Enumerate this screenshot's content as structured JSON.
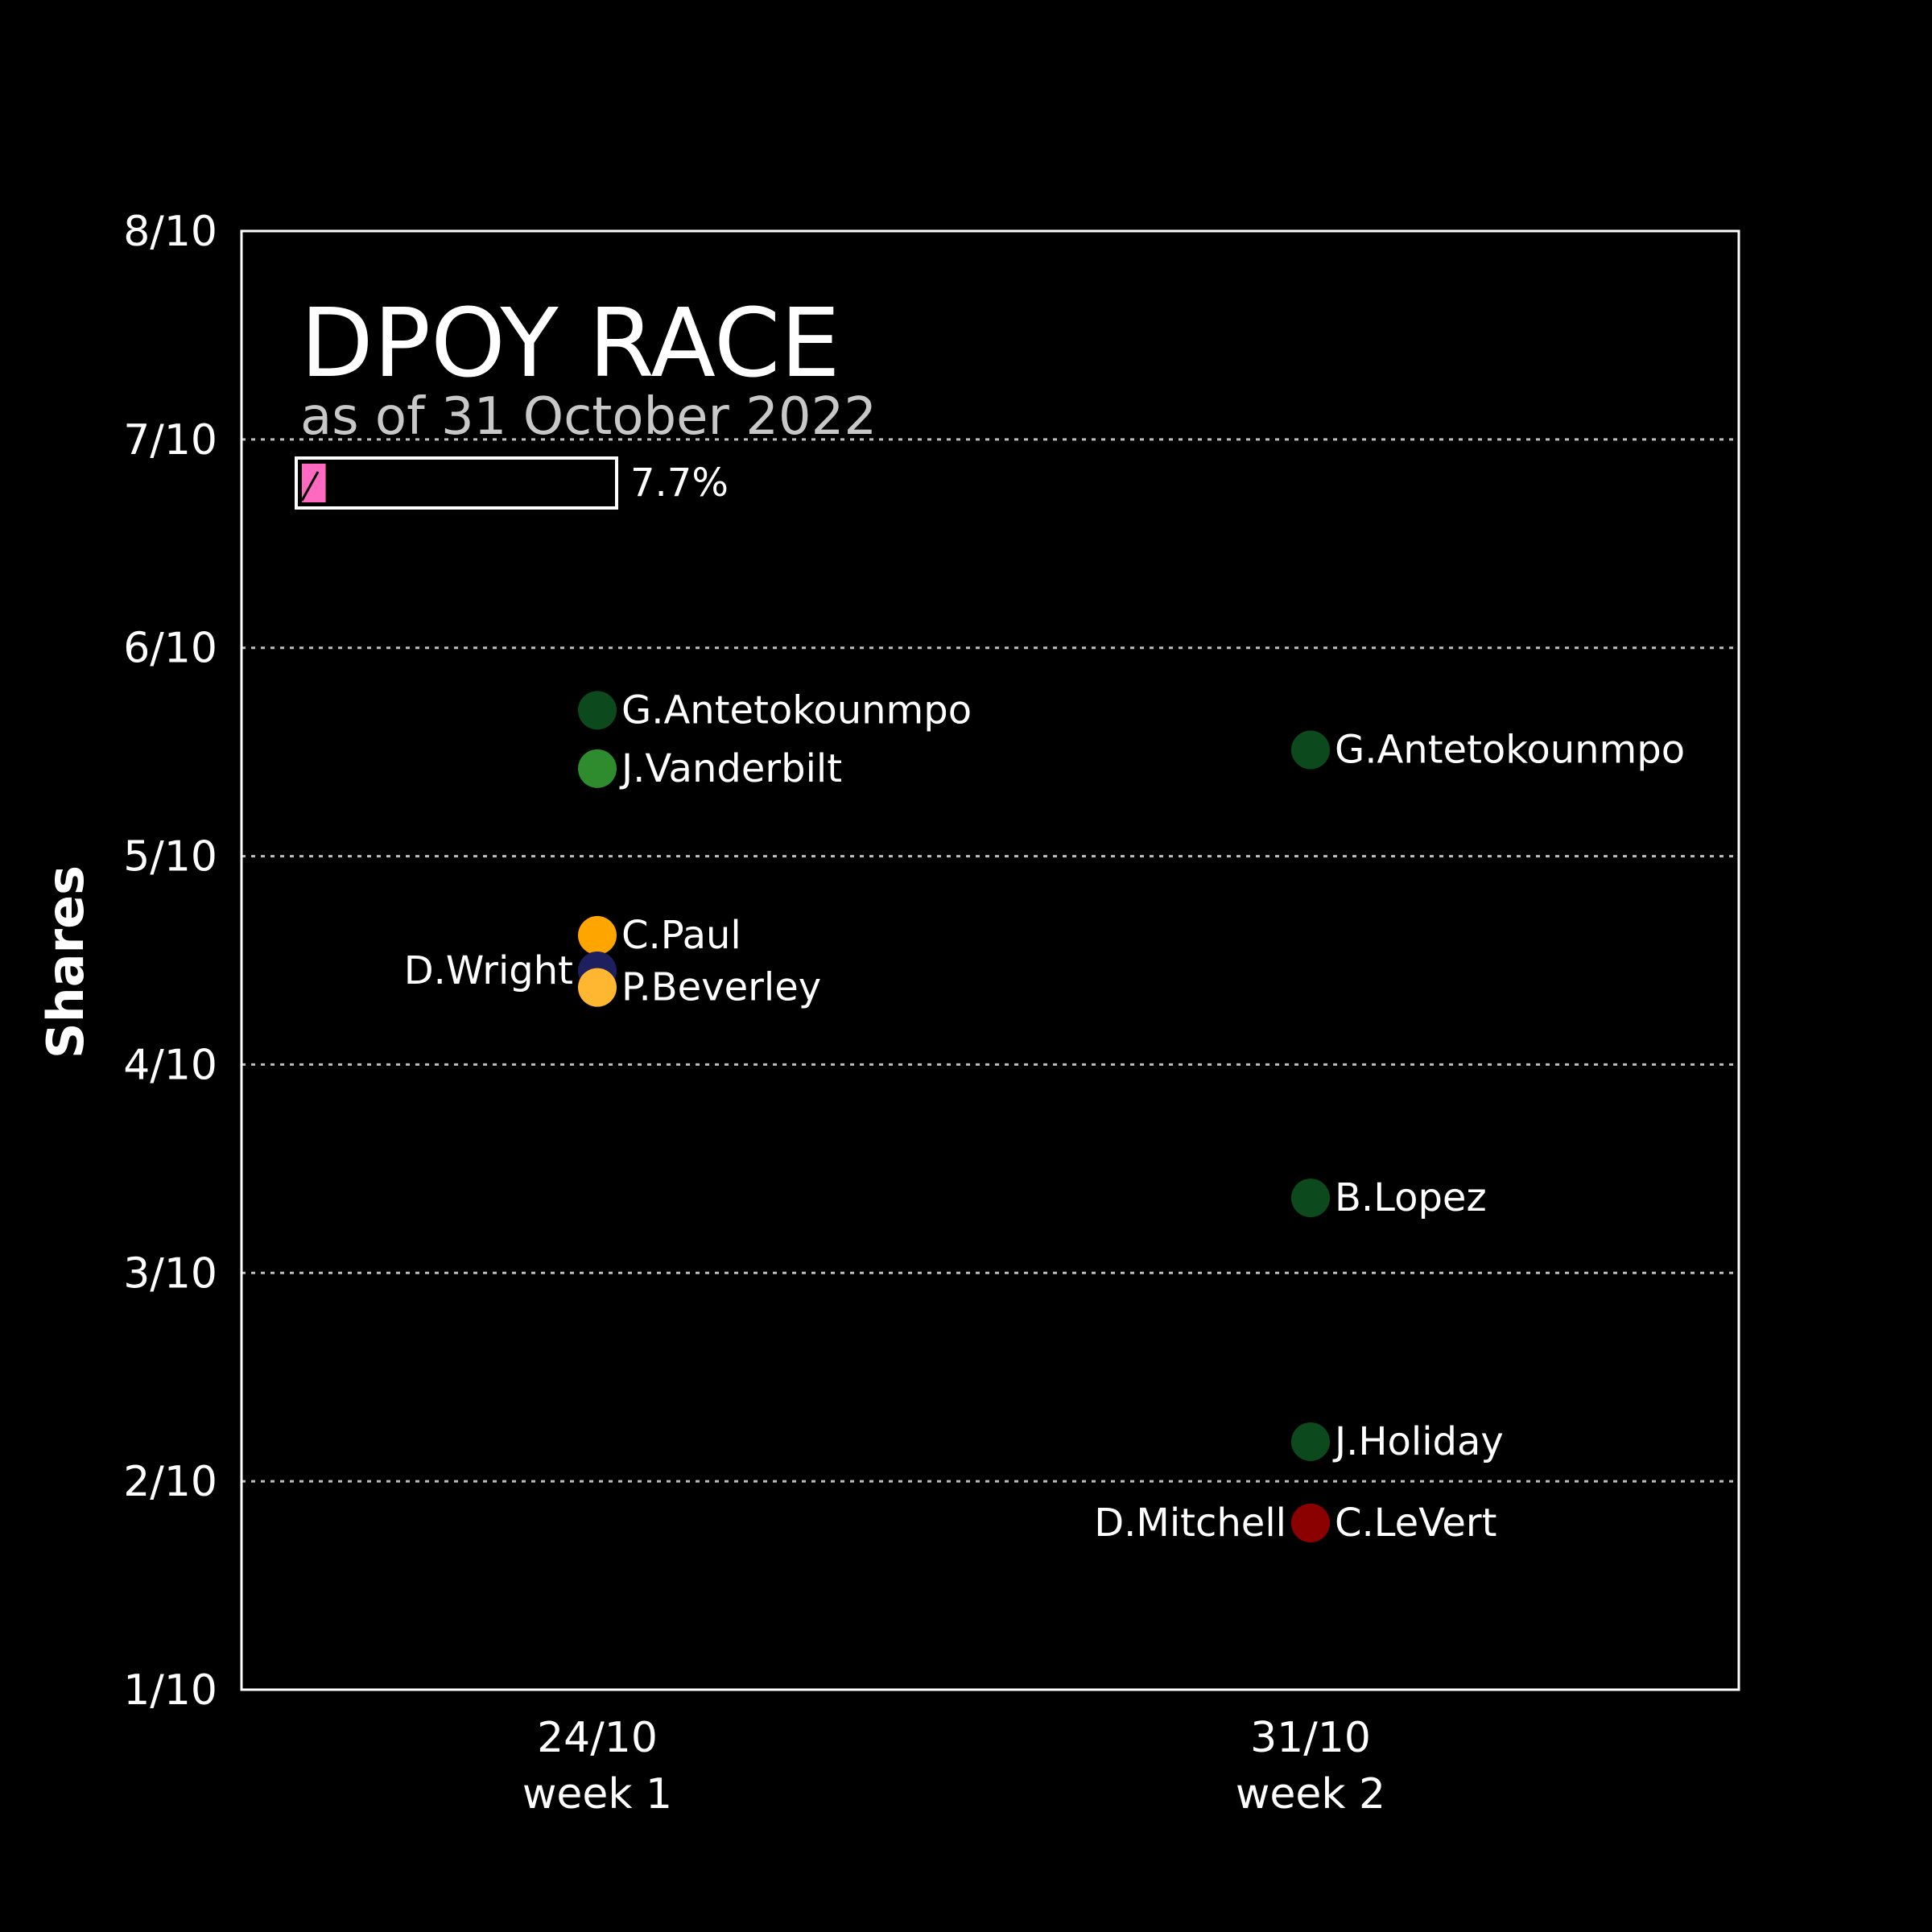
{
  "chart_data": {
    "type": "scatter",
    "title": "DPOY RACE",
    "subtitle": "as of 31 October 2022",
    "ylabel": "Shares",
    "xlabel": "",
    "ylim": [
      0.1,
      0.8
    ],
    "yticks": [
      {
        "value": 0.1,
        "label": "1/10"
      },
      {
        "value": 0.2,
        "label": "2/10"
      },
      {
        "value": 0.3,
        "label": "3/10"
      },
      {
        "value": 0.4,
        "label": "4/10"
      },
      {
        "value": 0.5,
        "label": "5/10"
      },
      {
        "value": 0.6,
        "label": "6/10"
      },
      {
        "value": 0.7,
        "label": "7/10"
      },
      {
        "value": 0.8,
        "label": "8/10"
      }
    ],
    "categories": [
      {
        "date": "24/10",
        "week": "week 1"
      },
      {
        "date": "31/10",
        "week": "week 2"
      }
    ],
    "grid": true,
    "progress": {
      "value": 0.077,
      "label": "7.7%",
      "color": "#ff69c0"
    },
    "points": [
      {
        "x": 0,
        "y": 0.57,
        "label": "G.Antetokounmpo",
        "color": "#0c4a1e",
        "label_side": "right"
      },
      {
        "x": 0,
        "y": 0.542,
        "label": "J.Vanderbilt",
        "color": "#2e8b2e",
        "label_side": "right"
      },
      {
        "x": 0,
        "y": 0.462,
        "label": "C.Paul",
        "color": "#ffa500",
        "label_side": "right"
      },
      {
        "x": 0,
        "y": 0.445,
        "label": "D.Wright",
        "color": "#1d1f5e",
        "label_side": "left"
      },
      {
        "x": 0,
        "y": 0.437,
        "label": "P.Beverley",
        "color": "#ffb732",
        "label_side": "right"
      },
      {
        "x": 1,
        "y": 0.551,
        "label": "G.Antetokounmpo",
        "color": "#0c4a1e",
        "label_side": "right"
      },
      {
        "x": 1,
        "y": 0.336,
        "label": "B.Lopez",
        "color": "#0c4a1e",
        "label_side": "right"
      },
      {
        "x": 1,
        "y": 0.219,
        "label": "J.Holiday",
        "color": "#0c4a1e",
        "label_side": "right"
      },
      {
        "x": 1,
        "y": 0.18,
        "label": "D.Mitchell",
        "color": "#8b0000",
        "label_side": "left"
      },
      {
        "x": 1,
        "y": 0.18,
        "label": "C.LeVert",
        "color": "#8b0000",
        "label_side": "right"
      }
    ]
  }
}
